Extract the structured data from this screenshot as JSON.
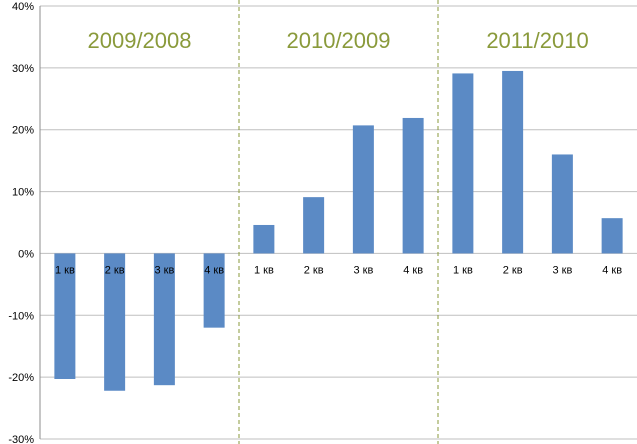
{
  "chart_data": {
    "type": "bar",
    "groups": [
      {
        "label": "2009/2008",
        "categories": [
          "1 кв",
          "2 кв",
          "3 кв",
          "4 кв"
        ],
        "values": [
          -20.3,
          -22.2,
          -21.3,
          -12.0
        ]
      },
      {
        "label": "2010/2009",
        "categories": [
          "1 кв",
          "2 кв",
          "3 кв",
          "4 кв"
        ],
        "values": [
          4.6,
          9.1,
          20.7,
          21.9
        ]
      },
      {
        "label": "2011/2010",
        "categories": [
          "1 кв",
          "2 кв",
          "3 кв",
          "4 кв"
        ],
        "values": [
          29.1,
          29.5,
          16.0,
          5.7
        ]
      }
    ],
    "y_ticks": [
      "40%",
      "30%",
      "20%",
      "10%",
      "0%",
      "-10%",
      "-20%",
      "-30%"
    ],
    "ylim": [
      -30,
      40
    ],
    "grid": true,
    "bar_color": "#5B8AC5",
    "period_label_color": "#8A9A3B",
    "separator_color": "#8A9A3B",
    "gridline_color": "#BFBFBF"
  }
}
